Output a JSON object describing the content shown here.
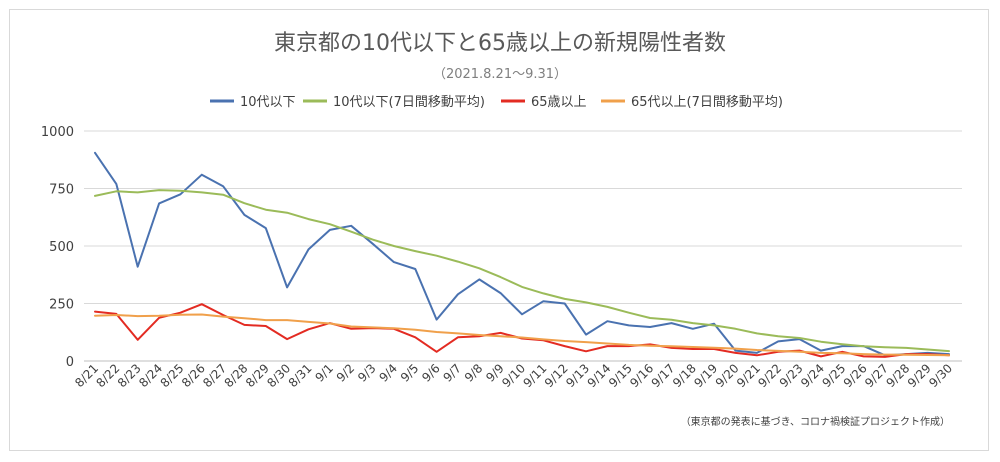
{
  "chart_data": {
    "type": "line",
    "title": "東京都の10代以下と65歳以上の新規陽性者数",
    "subtitle": "（2021.8.21〜9.31）",
    "footnote": "（東京都の発表に基づき、コロナ禍検証プロジェクト作成）",
    "ylim": [
      0,
      1000
    ],
    "yticks": [
      0,
      250,
      500,
      750,
      1000
    ],
    "ytick_labels": [
      "0",
      "250",
      "500",
      "750",
      "1000"
    ],
    "grid": true,
    "legend_position": "top",
    "categories": [
      "8/21",
      "8/22",
      "8/23",
      "8/24",
      "8/25",
      "8/26",
      "8/27",
      "8/28",
      "8/29",
      "8/30",
      "8/31",
      "9/1",
      "9/2",
      "9/3",
      "9/4",
      "9/5",
      "9/6",
      "9/7",
      "9/8",
      "9/9",
      "9/10",
      "9/11",
      "9/12",
      "9/13",
      "9/14",
      "9/15",
      "9/16",
      "9/17",
      "9/18",
      "9/19",
      "9/20",
      "9/21",
      "9/22",
      "9/23",
      "9/24",
      "9/25",
      "9/26",
      "9/27",
      "9/28",
      "9/29",
      "9/30"
    ],
    "series": [
      {
        "name": "10代以下",
        "color": "#4a72b0",
        "values": [
          905,
          770,
          410,
          685,
          725,
          810,
          760,
          635,
          578,
          320,
          485,
          570,
          588,
          510,
          430,
          400,
          180,
          290,
          355,
          295,
          203,
          260,
          250,
          115,
          173,
          155,
          148,
          165,
          140,
          162,
          45,
          35,
          85,
          95,
          45,
          65,
          65,
          25,
          30,
          35,
          30
        ]
      },
      {
        "name": "10代以下(7日間移動平均)",
        "color": "#9bbb59",
        "values": [
          718,
          738,
          733,
          743,
          740,
          733,
          723,
          686,
          658,
          645,
          617,
          595,
          562,
          528,
          500,
          478,
          458,
          432,
          403,
          365,
          322,
          294,
          270,
          255,
          235,
          210,
          187,
          179,
          165,
          155,
          140,
          120,
          108,
          100,
          84,
          73,
          64,
          60,
          57,
          50,
          43
        ]
      },
      {
        "name": "65歳以上",
        "color": "#e32b22",
        "values": [
          215,
          205,
          92,
          188,
          210,
          247,
          200,
          157,
          152,
          95,
          138,
          165,
          140,
          143,
          140,
          103,
          40,
          103,
          108,
          122,
          98,
          90,
          65,
          42,
          65,
          65,
          72,
          57,
          52,
          52,
          35,
          25,
          40,
          45,
          20,
          40,
          20,
          18,
          30,
          30,
          25
        ]
      },
      {
        "name": "65代以上(7日間移動平均)",
        "color": "#f0a04b",
        "values": [
          197,
          200,
          195,
          197,
          201,
          202,
          193,
          186,
          178,
          178,
          170,
          163,
          150,
          146,
          142,
          136,
          126,
          120,
          113,
          108,
          102,
          94,
          87,
          82,
          76,
          70,
          66,
          64,
          61,
          58,
          54,
          48,
          44,
          40,
          35,
          34,
          30,
          28,
          27,
          26,
          25
        ]
      }
    ]
  }
}
